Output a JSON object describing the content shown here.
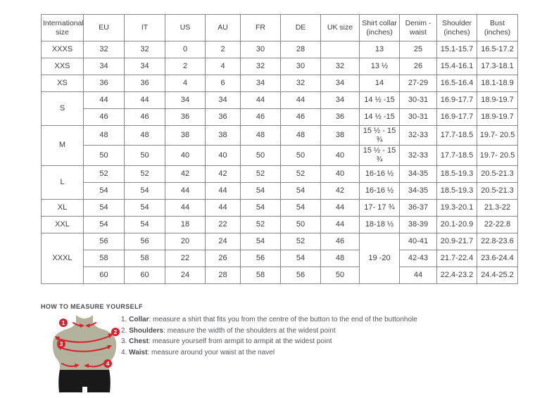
{
  "colors": {
    "accent_red": "#d6212e",
    "torso": "#b3b29d",
    "shorts": "#191919",
    "table_border": "#8a8a8a",
    "text": "#3d3d3d"
  },
  "table": {
    "headers": [
      "International size",
      "EU",
      "IT",
      "US",
      "AU",
      "FR",
      "DE",
      "UK size",
      "Shirt collar (inches)",
      "Denim - waist",
      "Shoulder (inches)",
      "Bust (inches)"
    ],
    "rows": [
      [
        {
          "t": "XXXS"
        },
        "32",
        "32",
        "0",
        "2",
        "30",
        "28",
        "",
        "13",
        "25",
        "15.1-15.7",
        "16.5-17.2"
      ],
      [
        {
          "t": "XXS"
        },
        "34",
        "34",
        "2",
        "4",
        "32",
        "30",
        "32",
        "13 ½",
        "26",
        "15.4-16.1",
        "17.3-18.1"
      ],
      [
        {
          "t": "XS"
        },
        "36",
        "36",
        "4",
        "6",
        "34",
        "32",
        "34",
        "14",
        "27-29",
        "16.5-16.4",
        "18.1-18.9"
      ],
      [
        {
          "t": "S",
          "rs": 2
        },
        "44",
        "44",
        "34",
        "34",
        "44",
        "44",
        "34",
        "14 ½ -15",
        "30-31",
        "16.9-17.7",
        "18.9-19.7"
      ],
      [
        null,
        "46",
        "46",
        "36",
        "36",
        "46",
        "46",
        "36",
        "14 ½ -15",
        "30-31",
        "16.9-17.7",
        "18.9-19.7"
      ],
      [
        {
          "t": "M",
          "rs": 2
        },
        "48",
        "48",
        "38",
        "38",
        "48",
        "48",
        "38",
        "15 ½ - 15 ¾",
        "32-33",
        "17.7-18.5",
        "19.7- 20.5"
      ],
      [
        null,
        "50",
        "50",
        "40",
        "40",
        "50",
        "50",
        "40",
        "15 ½ - 15 ¾",
        "32-33",
        "17.7-18.5",
        "19.7- 20.5"
      ],
      [
        {
          "t": "L",
          "rs": 2
        },
        "52",
        "52",
        "42",
        "42",
        "52",
        "52",
        "40",
        "16-16 ½",
        "34-35",
        "18.5-19.3",
        "20.5-21.3"
      ],
      [
        null,
        "54",
        "54",
        "44",
        "44",
        "54",
        "54",
        "42",
        "16-16 ½",
        "34-35",
        "18.5-19.3",
        "20.5-21.3"
      ],
      [
        {
          "t": "XL"
        },
        "54",
        "54",
        "44",
        "44",
        "54",
        "54",
        "44",
        "17- 17 ¾",
        "36-37",
        "19.3-20.1",
        "21.3-22"
      ],
      [
        {
          "t": "XXL"
        },
        "54",
        "54",
        "18",
        "22",
        "52",
        "50",
        "44",
        "18-18 ½",
        "38-39",
        "20.1-20.9",
        "22-22.8"
      ],
      [
        {
          "t": "XXXL",
          "rs": 3
        },
        "56",
        "56",
        "20",
        "24",
        "54",
        "52",
        "46",
        {
          "t": "19 -20",
          "rs": 3
        },
        "40-41",
        "20.9-21.7",
        "22.8-23.6"
      ],
      [
        null,
        "58",
        "58",
        "22",
        "26",
        "56",
        "54",
        "48",
        null,
        "42-43",
        "21.7-22.4",
        "23.6-24.4"
      ],
      [
        null,
        "60",
        "60",
        "24",
        "28",
        "58",
        "56",
        "50",
        null,
        "44",
        "22.4-23.2",
        "24.4-25.2"
      ]
    ]
  },
  "measure": {
    "title": "HOW TO MEASURE YOURSELF",
    "badges": [
      "1",
      "2",
      "3",
      "4"
    ],
    "steps": [
      {
        "num": "1. ",
        "label": "Collar",
        "rest": ": measure a shirt that fits you from the centre of the button to the end of the buttonhole"
      },
      {
        "num": "2. ",
        "label": "Shoulders",
        "rest": ": measure the width of the shoulders at the widest point"
      },
      {
        "num": "3. ",
        "label": "Chest",
        "rest": ": measure yourself from armpit to armpit at the widest point"
      },
      {
        "num": "4. ",
        "label": "Waist",
        "rest": ": measure around your waist at the navel"
      }
    ]
  }
}
